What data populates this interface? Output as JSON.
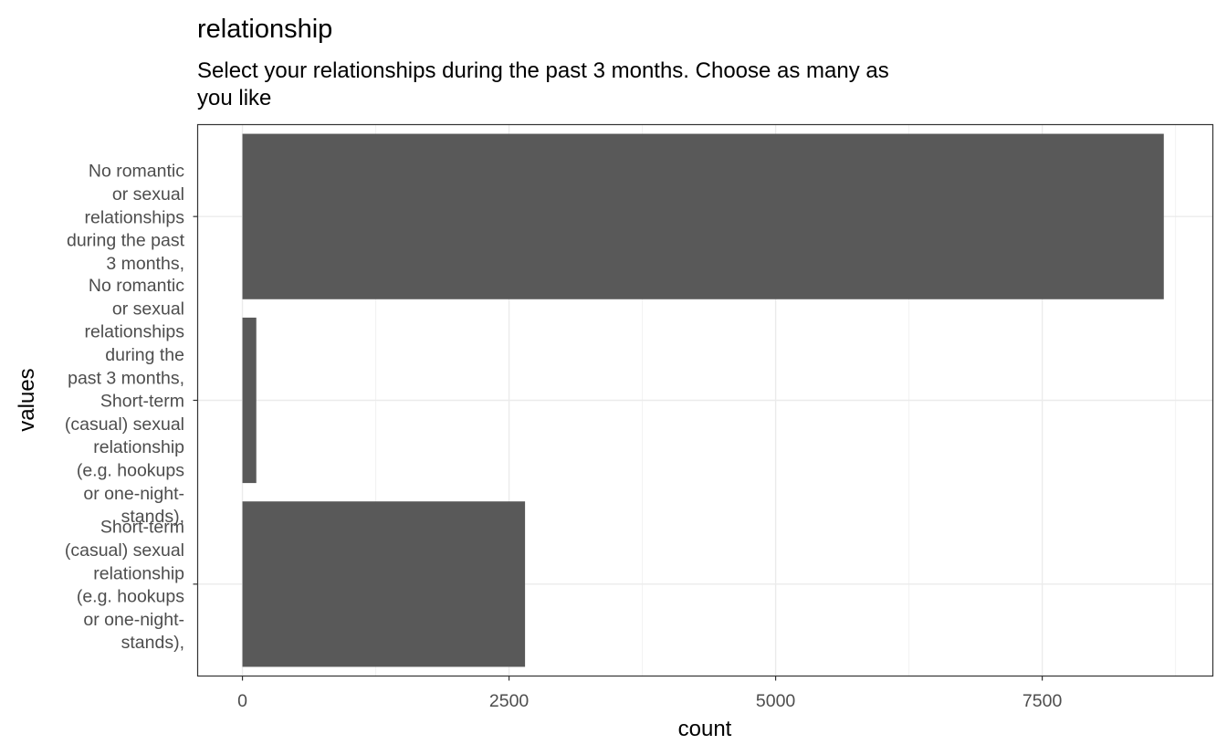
{
  "chart_data": {
    "type": "bar",
    "orientation": "horizontal",
    "title": "relationship",
    "subtitle": [
      "Select your relationships during the past 3 months. Choose as many as",
      "you like"
    ],
    "xlabel": "count",
    "ylabel": "values",
    "xlim": [
      -420,
      9100
    ],
    "xticks": [
      0,
      2500,
      5000,
      7500
    ],
    "xtick_labels": [
      "0",
      "2500",
      "5000",
      "7500"
    ],
    "grid": true,
    "bar_color": "#595959",
    "categories": [
      {
        "label_lines": [
          "Short-term",
          "(casual) sexual",
          "relationship",
          "(e.g. hookups",
          "or one-night-",
          "stands),"
        ],
        "value": 2650
      },
      {
        "label_lines": [
          "No romantic",
          "or sexual",
          "relationships",
          "during the",
          "past 3 months,",
          "Short-term",
          "(casual) sexual",
          "relationship",
          "(e.g. hookups",
          "or one-night-",
          "stands),"
        ],
        "value": 130
      },
      {
        "label_lines": [
          "No romantic",
          "or sexual",
          "relationships",
          "during the past",
          "3 months,"
        ],
        "value": 8640
      }
    ]
  }
}
